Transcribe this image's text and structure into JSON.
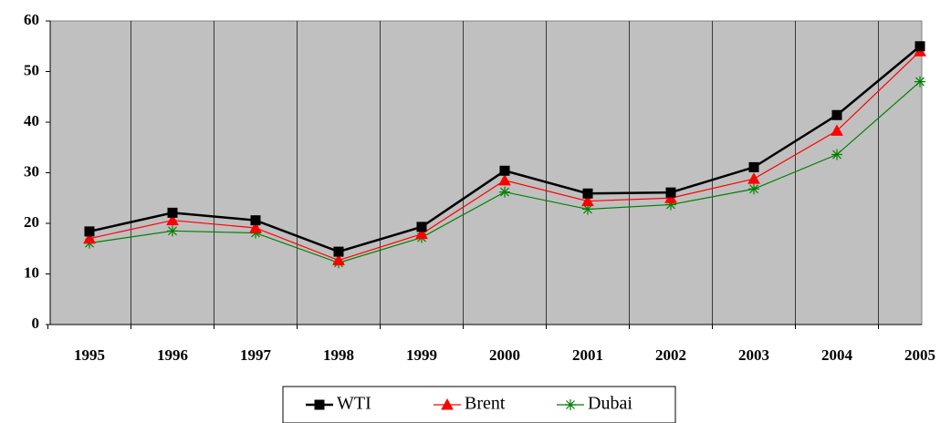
{
  "chart_data": {
    "type": "line",
    "categories": [
      "1995",
      "1996",
      "1997",
      "1998",
      "1999",
      "2000",
      "2001",
      "2002",
      "2003",
      "2004",
      "2005"
    ],
    "series": [
      {
        "name": "WTI",
        "color": "#000000",
        "marker": "square",
        "values": [
          18.4,
          22.1,
          20.6,
          14.4,
          19.3,
          30.4,
          25.9,
          26.1,
          31.1,
          41.4,
          55.0
        ]
      },
      {
        "name": "Brent",
        "color": "#ff0000",
        "marker": "triangle",
        "values": [
          17.0,
          20.6,
          19.1,
          12.7,
          17.9,
          28.5,
          24.4,
          25.0,
          28.8,
          38.3,
          54.0
        ]
      },
      {
        "name": "Dubai",
        "color": "#008000",
        "marker": "asterisk",
        "values": [
          16.1,
          18.5,
          18.1,
          12.2,
          17.2,
          26.2,
          22.8,
          23.7,
          26.8,
          33.6,
          48.0
        ]
      }
    ],
    "ylim": [
      0,
      60
    ],
    "yticks": [
      0,
      10,
      20,
      30,
      40,
      50,
      60
    ],
    "grid": true,
    "legend": "bottom"
  }
}
